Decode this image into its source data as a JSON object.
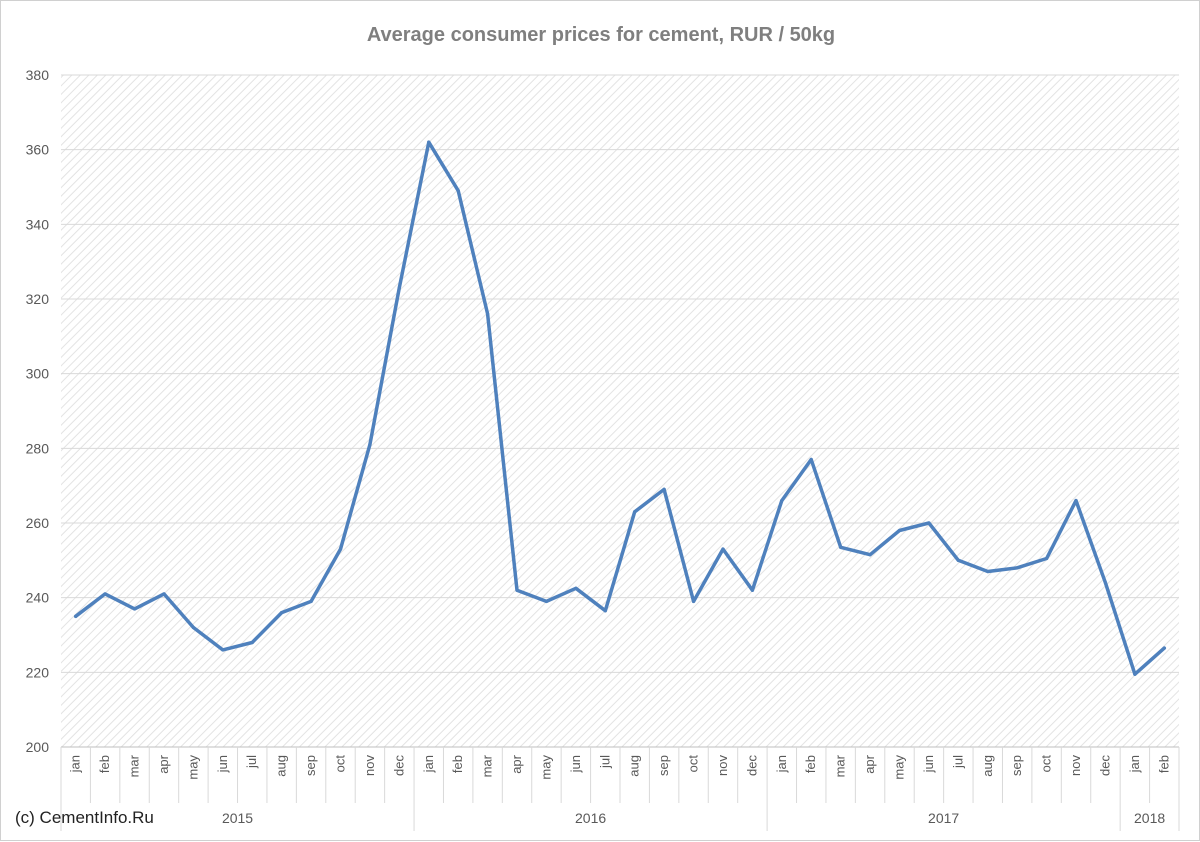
{
  "credit": "(c) CementInfo.Ru",
  "colors": {
    "line": "#4f81bd",
    "grid": "#d9d9d9",
    "hatch": "#e3e3e3",
    "text": "#595959",
    "title": "#7f7f7f"
  },
  "chart_data": {
    "type": "line",
    "title": "Average consumer prices for cement, RUR / 50kg",
    "xlabel": "",
    "ylabel": "",
    "ylim": [
      200,
      380
    ],
    "yticks": [
      200,
      220,
      240,
      260,
      280,
      300,
      320,
      340,
      360,
      380
    ],
    "grid": true,
    "legend": "none",
    "categories": [
      "jan",
      "feb",
      "mar",
      "apr",
      "may",
      "jun",
      "jul",
      "aug",
      "sep",
      "oct",
      "nov",
      "dec",
      "jan",
      "feb",
      "mar",
      "apr",
      "may",
      "jun",
      "jul",
      "aug",
      "sep",
      "oct",
      "nov",
      "dec",
      "jan",
      "feb",
      "mar",
      "apr",
      "may",
      "jun",
      "jul",
      "aug",
      "sep",
      "oct",
      "nov",
      "dec",
      "jan",
      "feb"
    ],
    "groups": [
      {
        "label": "2015",
        "count": 12
      },
      {
        "label": "2016",
        "count": 12
      },
      {
        "label": "2017",
        "count": 12
      },
      {
        "label": "2018",
        "count": 2
      }
    ],
    "series": [
      {
        "values": [
          235,
          241,
          237,
          241,
          232,
          226,
          228,
          236,
          239,
          253,
          281,
          323,
          362,
          349,
          316,
          242,
          239,
          242.5,
          236.5,
          263,
          269,
          239,
          253,
          242,
          266,
          277,
          253.5,
          251.5,
          258,
          260,
          250,
          247,
          248,
          250.5,
          266,
          244,
          219.5,
          226.5
        ]
      }
    ]
  }
}
